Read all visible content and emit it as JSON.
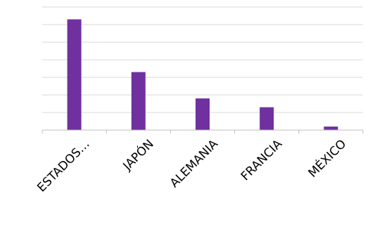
{
  "chart_data": {
    "type": "bar",
    "title": "",
    "xlabel": "",
    "ylabel": "",
    "categories": [
      "ESTADOS…",
      "JAPÓN",
      "ALEMANIA",
      "FRANCIA",
      "MÉXICO"
    ],
    "values": [
      6.3,
      3.3,
      1.8,
      1.3,
      0.2
    ],
    "ylim": [
      0,
      7
    ],
    "gridlines": 7,
    "grid": true,
    "legend": "none",
    "bar_color": "#7030a0"
  }
}
